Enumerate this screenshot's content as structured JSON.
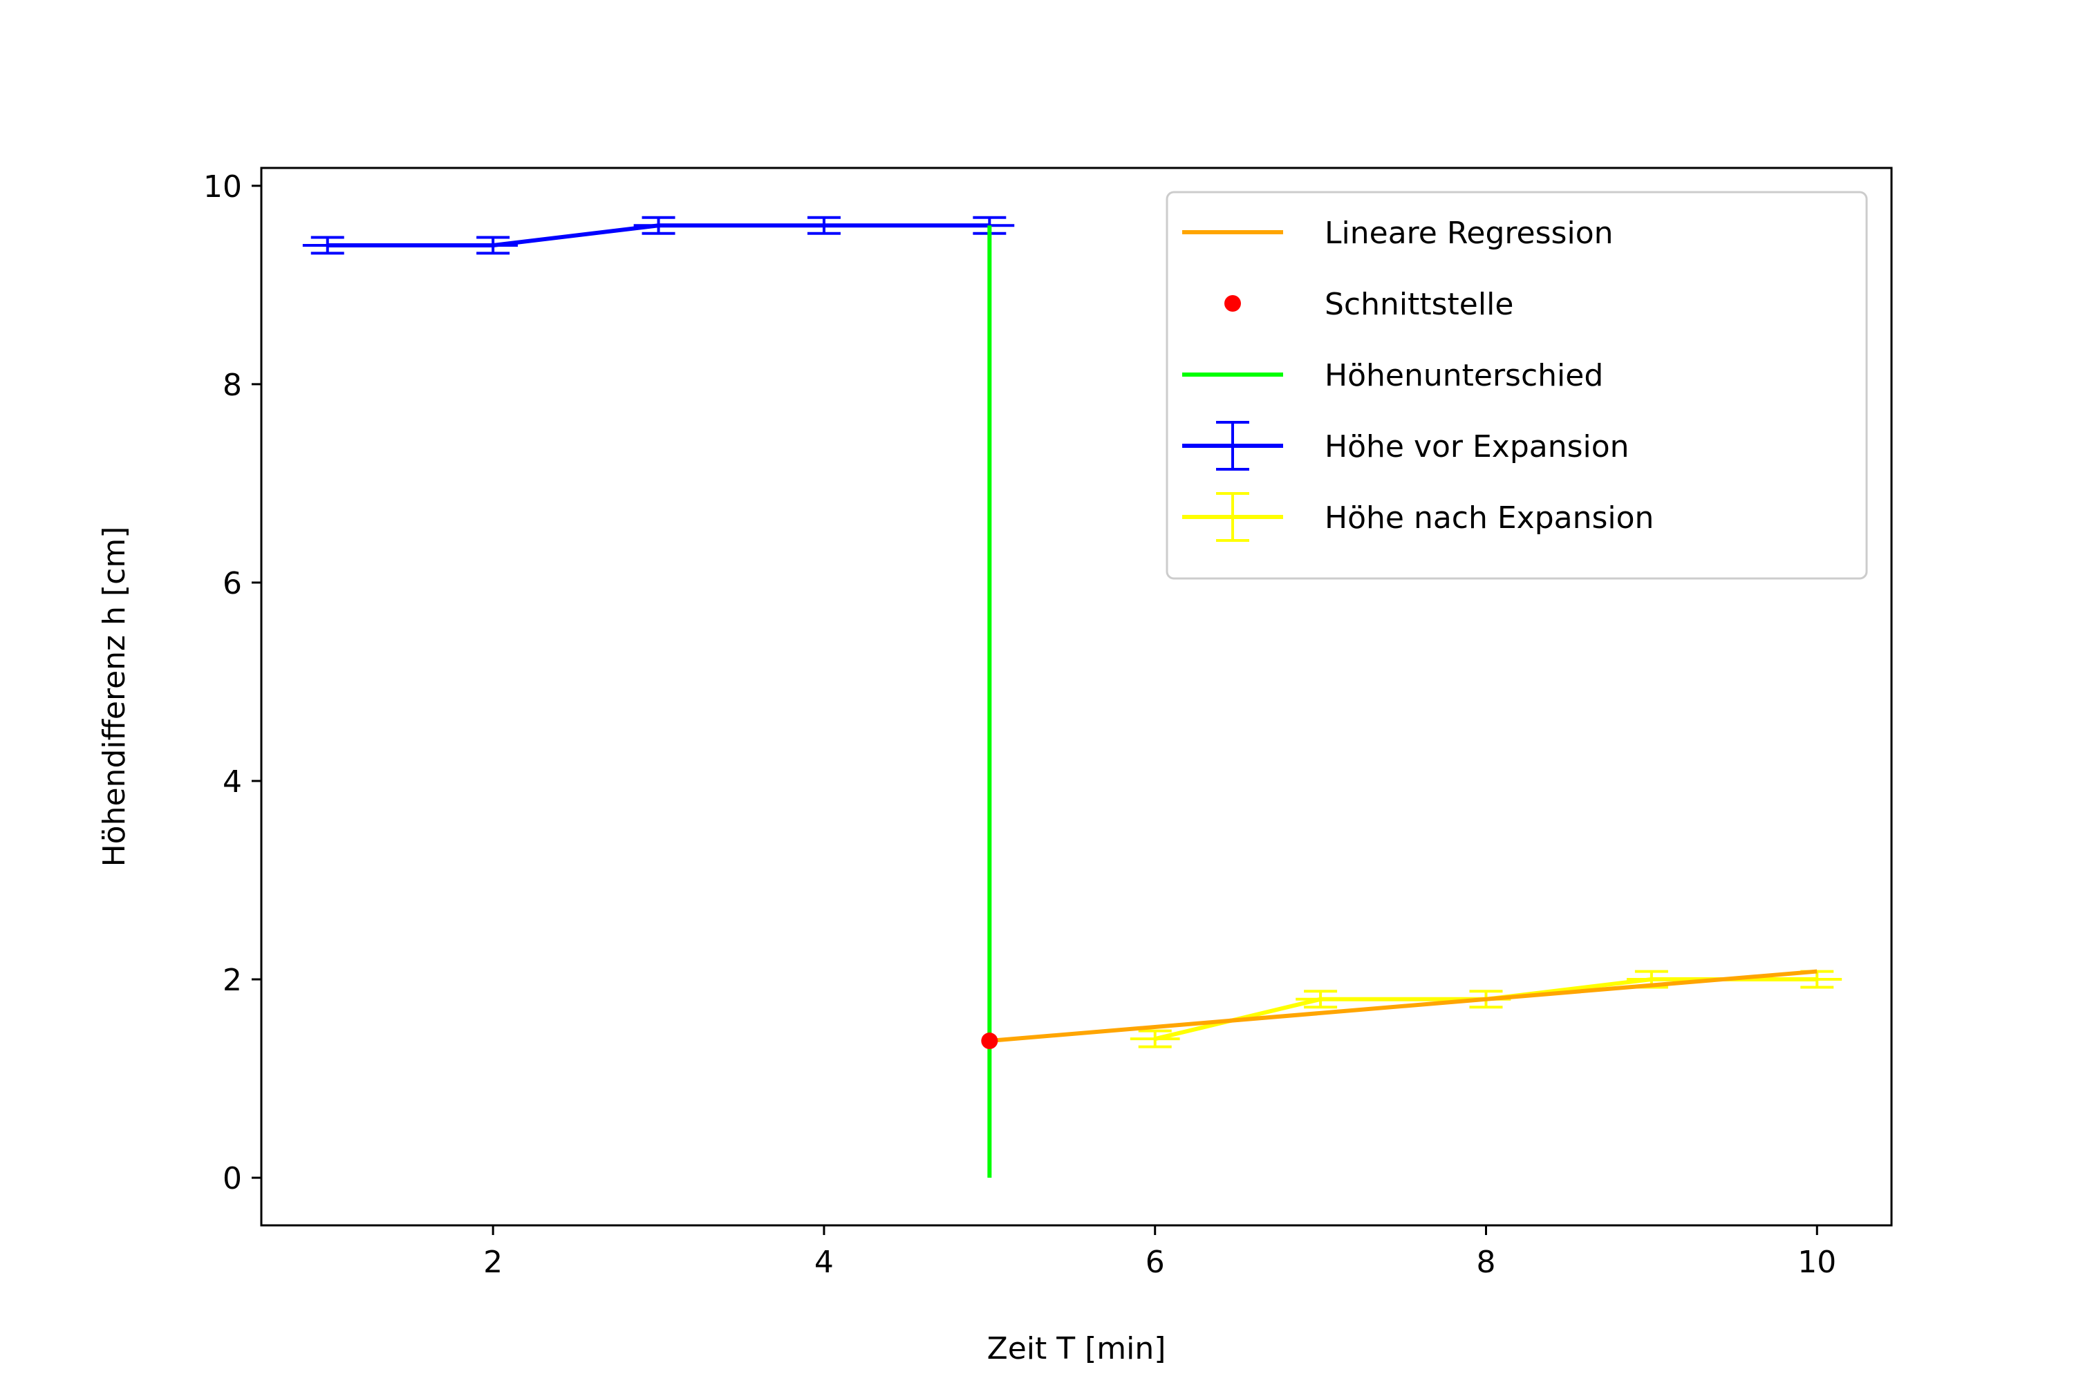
{
  "chart_data": {
    "type": "line",
    "xlabel": "Zeit T [min]",
    "ylabel": "Höhendifferenz h [cm]",
    "xlim": [
      0.6,
      10.45
    ],
    "ylim": [
      -0.48,
      10.18
    ],
    "x_ticks": [
      2,
      4,
      6,
      8,
      10
    ],
    "y_ticks": [
      0,
      2,
      4,
      6,
      8,
      10
    ],
    "grid": false,
    "legend_position": "top-right",
    "series": [
      {
        "name": "Höhe vor Expansion",
        "kind": "errorbar",
        "color": "#0000ff",
        "x": [
          1,
          2,
          3,
          4,
          5
        ],
        "y": [
          9.4,
          9.4,
          9.6,
          9.6,
          9.6
        ],
        "xerr": 0.15,
        "yerr": 0.08
      },
      {
        "name": "Höhe nach Expansion",
        "kind": "errorbar",
        "color": "#ffff00",
        "x": [
          6,
          7,
          8,
          9,
          10
        ],
        "y": [
          1.4,
          1.8,
          1.8,
          2.0,
          2.0
        ],
        "xerr": 0.15,
        "yerr": 0.08
      },
      {
        "name": "Lineare Regression",
        "kind": "line",
        "color": "#ffa500",
        "x": [
          5,
          10
        ],
        "y": [
          1.38,
          2.08
        ]
      },
      {
        "name": "Schnittstelle",
        "kind": "point",
        "color": "#ff0000",
        "x": [
          5
        ],
        "y": [
          1.38
        ]
      },
      {
        "name": "Höhenunterschied",
        "kind": "vline",
        "color": "#00ff00",
        "x": [
          5,
          5
        ],
        "y": [
          0,
          9.6
        ]
      }
    ],
    "legend_order": [
      "Lineare Regression",
      "Schnittstelle",
      "Höhenunterschied",
      "Höhe vor Expansion",
      "Höhe nach Expansion"
    ]
  }
}
